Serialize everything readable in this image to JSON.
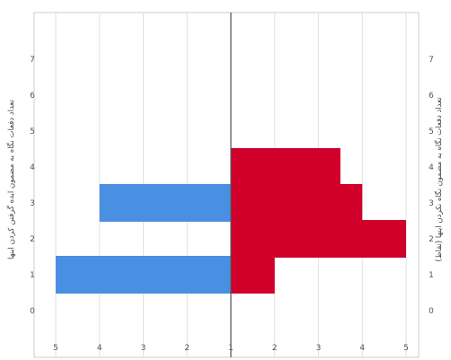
{
  "chart_data": {
    "type": "bar",
    "orientation": "horizontal",
    "layout": "back-to-back",
    "title": "",
    "categories": [
      "0",
      "1",
      "2",
      "3",
      "4",
      "5",
      "6",
      "7"
    ],
    "left_axis_label": "تعداد دفعات نگاه به مضمون ایده گرفتن کردن اینها",
    "right_axis_label": "تعداد دفعات نگاه به مضمون نگاه نکردن اینها (نقاط)",
    "x_tick_labels": [
      "5",
      "4",
      "3",
      "2",
      "1",
      "1",
      "2",
      "3",
      "4",
      "5"
    ],
    "xlim_each_side": [
      0,
      4
    ],
    "grid": true,
    "series": [
      {
        "side": "left",
        "color": "#4a90e2",
        "values": [
          0,
          4,
          0,
          3,
          0,
          0,
          0,
          0
        ]
      },
      {
        "side": "right",
        "color": "#d0002a",
        "values": [
          0,
          1,
          4,
          3,
          2.5,
          0,
          0,
          0
        ]
      }
    ]
  }
}
